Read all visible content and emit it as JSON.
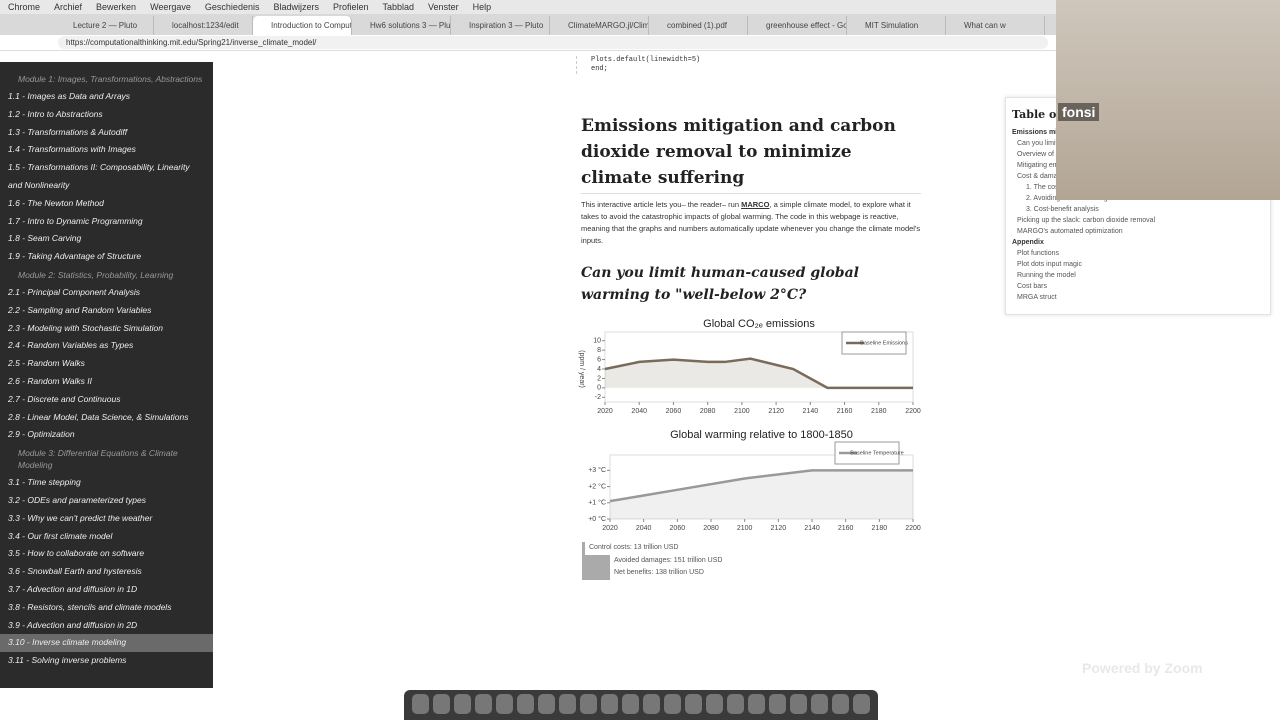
{
  "browser": {
    "menu": [
      "Chrome",
      "Archief",
      "Bewerken",
      "Weergave",
      "Geschiedenis",
      "Bladwijzers",
      "Profielen",
      "Tabblad",
      "Venster",
      "Help"
    ],
    "tabs": [
      "Lecture 2 — Pluto",
      "localhost:1234/edit",
      "Introduction to Computat",
      "Hw6 solutions 3 — Plu",
      "Inspiration 3 — Pluto",
      "ClimateMARGO.jl/Climate",
      "combined (1).pdf",
      "greenhouse effect - Goo",
      "MIT Simulation",
      "What can w"
    ],
    "active_tab": 2,
    "url": "https://computationalthinking.mit.edu/Spring21/inverse_climate_model/"
  },
  "sidebar": {
    "sections": [
      {
        "title": "Module 1: Images, Transformations, Abstractions",
        "items": [
          "1.1 - Images as Data and Arrays",
          "1.2 - Intro to Abstractions",
          "1.3 - Transformations & Autodiff",
          "1.4 - Transformations with Images",
          "1.5 - Transformations II: Composability, Linearity and Nonlinearity",
          "1.6 - The Newton Method",
          "1.7 - Intro to Dynamic Programming",
          "1.8 - Seam Carving",
          "1.9 - Taking Advantage of Structure"
        ]
      },
      {
        "title": "Module 2: Statistics, Probability, Learning",
        "items": [
          "2.1 - Principal Component Analysis",
          "2.2 - Sampling and Random Variables",
          "2.3 - Modeling with Stochastic Simulation",
          "2.4 - Random Variables as Types",
          "2.5 - Random Walks",
          "2.6 - Random Walks II",
          "2.7 - Discrete and Continuous",
          "2.8 - Linear Model, Data Science, & Simulations",
          "2.9 - Optimization"
        ]
      },
      {
        "title": "Module 3: Differential Equations & Climate Modeling",
        "items": [
          "3.1 - Time stepping",
          "3.2 - ODEs and parameterized types",
          "3.3 - Why we can't predict the weather",
          "3.4 - Our first climate model",
          "3.5 - How to collaborate on software",
          "3.6 - Snowball Earth and hysteresis",
          "3.7 - Advection and diffusion in 1D",
          "3.8 - Resistors, stencils and climate models",
          "3.9 - Advection and diffusion in 2D",
          "3.10 - Inverse climate modeling",
          "3.11 - Solving inverse problems"
        ]
      }
    ],
    "active": "3.10 - Inverse climate modeling"
  },
  "article": {
    "code": [
      "Plots.default(linewidth=5)",
      "end;"
    ],
    "title": "Emissions mitigation and carbon dioxide removal to minimize climate suffering",
    "intro_before": "This interactive article lets you– the reader– run ",
    "intro_link": "MARCO",
    "intro_after": ", a simple climate model, to explore what it takes to avoid the catastrophic impacts of global warming. The code in this webpage is reactive, meaning that the graphs and numbers automatically update whenever you change the climate model's inputs.",
    "heading": "Can you limit human-caused global warming to \"well-below 2°C?",
    "charts": [
      {
        "type": "line",
        "title": "Global CO₂ₑ emissions",
        "y_label": "(ppm / year)",
        "x": [
          2020,
          2040,
          2060,
          2080,
          2090,
          2105,
          2130,
          2150,
          2200
        ],
        "series": [
          {
            "name": "Baseline Emissions",
            "color": "#7a6a5a",
            "values": [
              4,
              5.5,
              6,
              5.5,
              5.5,
              6.2,
              4,
              0,
              0
            ]
          }
        ],
        "xlim": [
          2020,
          2200
        ],
        "ylim": [
          -3,
          11
        ],
        "xticks": [
          2020,
          2040,
          2060,
          2080,
          2100,
          2120,
          2140,
          2160,
          2180,
          2200
        ],
        "yticks": [
          -2,
          0,
          2,
          4,
          6,
          8,
          10
        ]
      },
      {
        "type": "line",
        "title": "Global warming relative to 1800-1850",
        "x": [
          2020,
          2060,
          2100,
          2140,
          2200
        ],
        "series": [
          {
            "name": "Baseline Temperature",
            "color": "#999999",
            "values": [
              1.1,
              1.8,
              2.5,
              3.0,
              3.0
            ]
          }
        ],
        "xlim": [
          2020,
          2200
        ],
        "ylim": [
          0,
          3.7
        ],
        "xticks": [
          2020,
          2040,
          2060,
          2080,
          2100,
          2120,
          2140,
          2160,
          2180,
          2200
        ],
        "yticks": [
          {
            "value": 0,
            "label": "+0 °C"
          },
          {
            "value": 1,
            "label": "+1 °C"
          },
          {
            "value": 2,
            "label": "+2 °C"
          },
          {
            "value": 3,
            "label": "+3 °C"
          }
        ]
      }
    ],
    "costs": [
      "Control costs: 13 trillion USD",
      "Avoided damages: 151 trillion USD",
      "Net benefits: 138 trillion USD"
    ]
  },
  "toc": {
    "title": "Table of Contents",
    "items": [
      "Emissions mitigation and carbon dioxide removal to minimize climate suf...",
      "Can you limit human-caused global warming to \"well-below 2°C?",
      "Overview of the climate problem: from greenhouse gas emissions to clima...",
      "Mitigating emissions",
      "Cost & damages",
      "1. The costs of climate suffering",
      "2. Avoiding climate damages",
      "3. Cost-benefit analysis",
      "Picking up the slack: carbon dioxide removal",
      "MARGO's automated optimization",
      "Appendix",
      "Plot functions",
      "Plot dots input magic",
      "Running the model",
      "Cost bars",
      "MRGA struct"
    ]
  },
  "video": {
    "name": "fonsi",
    "watermark": "Powered by Zoom"
  }
}
